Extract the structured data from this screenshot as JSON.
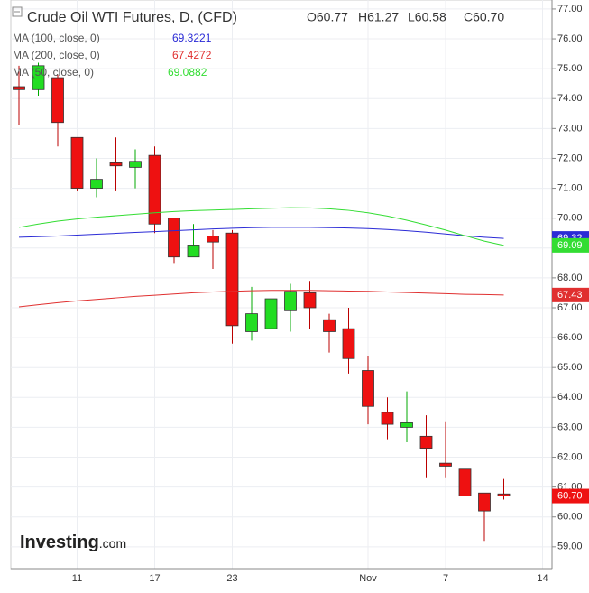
{
  "chart_data": {
    "type": "candlestick",
    "title": "Crude Oil WTI Futures, D, (CFD)",
    "ohlc_labels": [
      "O60.77",
      "H61.27",
      "L60.58",
      "C60.70"
    ],
    "last_label": "60.70",
    "categories": [
      null,
      null,
      null,
      "11",
      null,
      null,
      null,
      "17",
      null,
      null,
      null,
      "23",
      null,
      null,
      null,
      null,
      null,
      null,
      "Nov",
      null,
      null,
      null,
      "7",
      null,
      null,
      null,
      null,
      "14"
    ],
    "open": [
      74.4,
      74.3,
      74.7,
      72.7,
      71.0,
      71.85,
      71.7,
      72.1,
      70.0,
      68.7,
      69.4,
      69.5,
      66.2,
      66.3,
      66.9,
      67.5,
      66.6,
      66.3,
      64.9,
      63.5,
      63.0,
      62.7,
      61.8,
      61.6,
      60.8,
      60.77,
      null,
      null
    ],
    "high": [
      75.1,
      75.2,
      74.8,
      72.7,
      72.0,
      72.7,
      72.3,
      72.4,
      70.0,
      69.8,
      69.6,
      69.6,
      67.7,
      67.6,
      67.8,
      67.9,
      66.8,
      67.0,
      65.4,
      64.0,
      64.2,
      63.4,
      63.2,
      62.4,
      60.8,
      61.27,
      null,
      null
    ],
    "low": [
      73.1,
      74.1,
      72.4,
      70.9,
      70.7,
      70.9,
      71.0,
      69.5,
      68.5,
      68.7,
      68.3,
      65.8,
      65.9,
      66.0,
      66.2,
      66.3,
      65.5,
      64.8,
      63.1,
      62.6,
      62.5,
      61.3,
      61.3,
      60.6,
      59.2,
      60.58,
      null,
      null
    ],
    "close": [
      74.3,
      75.1,
      73.2,
      71.0,
      71.3,
      71.75,
      71.9,
      69.8,
      68.7,
      69.1,
      69.2,
      66.4,
      66.8,
      67.3,
      67.55,
      67.0,
      66.2,
      65.3,
      63.7,
      63.1,
      63.15,
      62.3,
      61.7,
      60.7,
      60.2,
      60.7,
      null,
      null
    ],
    "up_color": "#22dd22",
    "down_color": "#ee1111",
    "overlays": [
      {
        "name": "MA (100, close, 0)",
        "color": "#2b2bd6",
        "tag_label": "69.32",
        "values": [
          69.36,
          69.38,
          69.4,
          69.43,
          69.46,
          69.49,
          69.52,
          69.55,
          69.58,
          69.61,
          69.64,
          69.66,
          69.68,
          69.69,
          69.69,
          69.69,
          69.68,
          69.67,
          69.65,
          69.62,
          69.58,
          69.53,
          69.47,
          69.41,
          69.36,
          69.3221,
          null,
          null
        ]
      },
      {
        "name": "MA (200, close, 0)",
        "color": "#e03030",
        "tag_label": "67.43",
        "values": [
          67.03,
          67.1,
          67.17,
          67.23,
          67.28,
          67.33,
          67.38,
          67.42,
          67.46,
          67.5,
          67.53,
          67.55,
          67.57,
          67.58,
          67.58,
          67.58,
          67.57,
          67.56,
          67.55,
          67.53,
          67.51,
          67.49,
          67.47,
          67.45,
          67.44,
          67.4272,
          null,
          null
        ]
      },
      {
        "name": "MA (50, close, 0)",
        "color": "#33dd33",
        "tag_label": "69.09",
        "values": [
          69.69,
          69.8,
          69.9,
          69.97,
          70.03,
          70.08,
          70.13,
          70.18,
          70.22,
          70.25,
          70.27,
          70.29,
          70.31,
          70.33,
          70.35,
          70.34,
          70.31,
          70.26,
          70.18,
          70.07,
          69.93,
          69.77,
          69.6,
          69.41,
          69.23,
          69.0882,
          null,
          null
        ]
      }
    ],
    "ylim": [
      58.27,
      77.3
    ],
    "yticks": [
      {
        "value": 59,
        "label": "59.00"
      },
      {
        "value": 60,
        "label": "60.00"
      },
      {
        "value": 61,
        "label": "61.00"
      },
      {
        "value": 62,
        "label": "62.00"
      },
      {
        "value": 63,
        "label": "63.00"
      },
      {
        "value": 64,
        "label": "64.00"
      },
      {
        "value": 65,
        "label": "65.00"
      },
      {
        "value": 66,
        "label": "66.00"
      },
      {
        "value": 67,
        "label": "67.00"
      },
      {
        "value": 68,
        "label": "68.00"
      },
      {
        "value": 69,
        "label": "69.00"
      },
      {
        "value": 70,
        "label": "70.00"
      },
      {
        "value": 71,
        "label": "71.00"
      },
      {
        "value": 72,
        "label": "72.00"
      },
      {
        "value": 73,
        "label": "73.00"
      },
      {
        "value": 74,
        "label": "74.00"
      },
      {
        "value": 75,
        "label": "75.00"
      },
      {
        "value": 76,
        "label": "76.00"
      },
      {
        "value": 77,
        "label": "77.00"
      }
    ],
    "grid": true,
    "logo": "Investing",
    "logo_suffix": ".com"
  }
}
